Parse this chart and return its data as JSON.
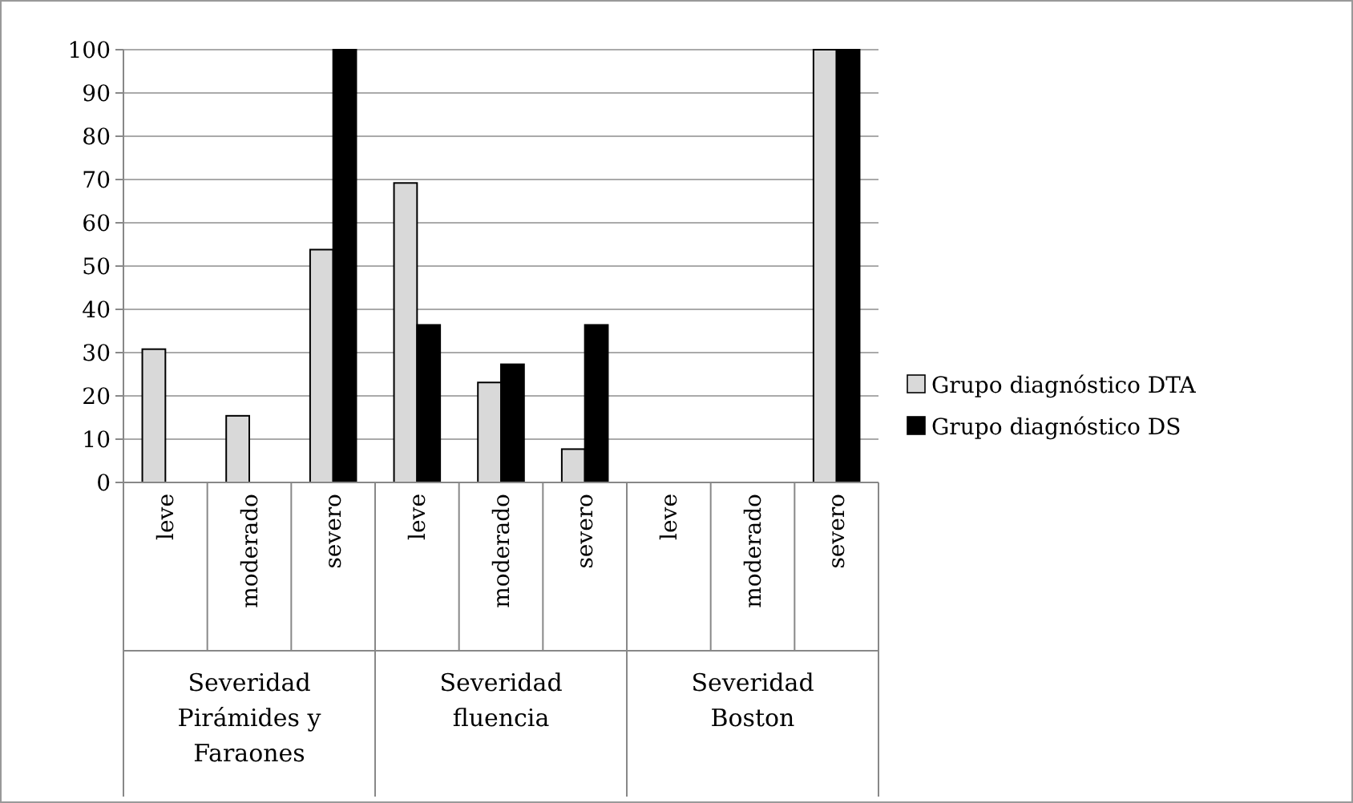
{
  "chart_data": {
    "type": "bar",
    "categories": [
      "leve",
      "moderado",
      "severo",
      "leve",
      "moderado",
      "severo",
      "leve",
      "moderado",
      "severo"
    ],
    "series": [
      {
        "name": "Grupo diagnóstico DTA",
        "color": "#d9d9d9",
        "values": [
          30.8,
          15.4,
          53.8,
          69.2,
          23.1,
          7.7,
          0,
          0,
          100
        ]
      },
      {
        "name": "Grupo diagnóstico DS",
        "color": "#000000",
        "values": [
          0,
          0,
          100,
          36.4,
          27.3,
          36.4,
          0,
          0,
          100
        ]
      }
    ],
    "annotations": [
      "Severidad Pirámides y Faraones",
      "Severidad fluencia",
      "Severidad Boston"
    ],
    "ylim": [
      0,
      100
    ],
    "yticks": [
      0,
      10,
      20,
      30,
      40,
      50,
      60,
      70,
      80,
      90,
      100
    ],
    "grid": "y",
    "legend": "right"
  }
}
